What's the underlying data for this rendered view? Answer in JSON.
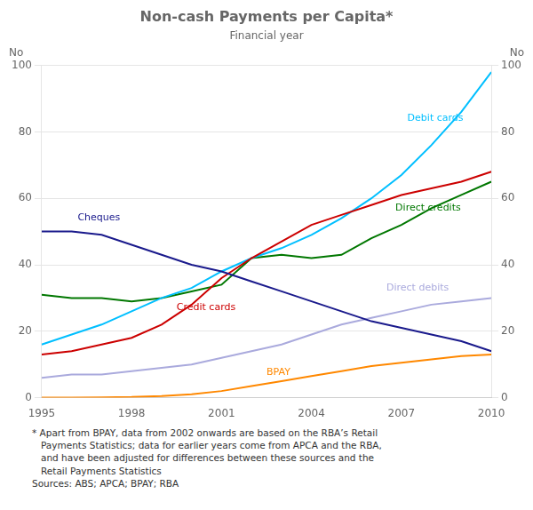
{
  "chart_data": {
    "type": "line",
    "title": "Non-cash Payments per Capita*",
    "subtitle": "Financial year",
    "y_label": "No",
    "y2_label": "No",
    "x": [
      1995,
      1996,
      1997,
      1998,
      1999,
      2000,
      2001,
      2002,
      2003,
      2004,
      2005,
      2006,
      2007,
      2008,
      2009,
      2010
    ],
    "series": [
      {
        "name": "Cheques",
        "color": "#1a1a8c",
        "values": [
          50,
          50,
          49,
          46,
          43,
          40,
          38,
          35,
          32,
          29,
          26,
          23,
          21,
          19,
          17,
          14
        ]
      },
      {
        "name": "Credit cards",
        "color": "#cc0000",
        "values": [
          13,
          14,
          16,
          18,
          22,
          28,
          36,
          42,
          47,
          52,
          55,
          58,
          61,
          63,
          65,
          68
        ]
      },
      {
        "name": "Debit cards",
        "color": "#00bfff",
        "values": [
          16,
          19,
          22,
          26,
          30,
          33,
          38,
          42,
          45,
          49,
          54,
          60,
          67,
          76,
          86,
          98
        ]
      },
      {
        "name": "Direct credits",
        "color": "#007700",
        "values": [
          31,
          30,
          30,
          29,
          30,
          32,
          34,
          42,
          43,
          42,
          43,
          48,
          52,
          57,
          61,
          65
        ]
      },
      {
        "name": "Direct debits",
        "color": "#aaaadd",
        "values": [
          6,
          7,
          7,
          8,
          9,
          10,
          12,
          14,
          16,
          19,
          22,
          24,
          26,
          28,
          29,
          30
        ]
      },
      {
        "name": "BPAY",
        "color": "#ff8800",
        "values": [
          0,
          0,
          0.1,
          0.2,
          0.5,
          1.0,
          2.0,
          3.5,
          5.0,
          6.5,
          8.0,
          9.5,
          10.5,
          11.5,
          12.5,
          13.0
        ]
      }
    ],
    "annotations": [
      {
        "text": "Cheques",
        "x": 1996.2,
        "y": 54
      },
      {
        "text": "Credit cards",
        "x": 1999.5,
        "y": 27
      },
      {
        "text": "Debit cards",
        "x": 2007.2,
        "y": 84
      },
      {
        "text": "Direct credits",
        "x": 2006.8,
        "y": 57
      },
      {
        "text": "Direct debits",
        "x": 2006.5,
        "y": 33
      },
      {
        "text": "BPAY",
        "x": 2002.5,
        "y": 7.5
      }
    ],
    "xlim": [
      1995,
      2010
    ],
    "xticks": [
      1995,
      1998,
      2001,
      2004,
      2007,
      2010
    ],
    "ylim": [
      0,
      100
    ],
    "yticks": [
      0,
      20,
      40,
      60,
      80,
      100
    ],
    "y2lim": [
      0,
      100
    ],
    "y2ticks": [
      0,
      20,
      40,
      60,
      80,
      100
    ],
    "grid": "y",
    "notes": [
      "* Apart from BPAY, data from 2002 onwards are based on the RBA’s Retail",
      "   Payments Statistics; data for earlier years come from APCA and the RBA,",
      "   and have been adjusted for differences between these sources and the",
      "   Retail Payments Statistics",
      "Sources: ABS; APCA; BPAY; RBA"
    ]
  }
}
